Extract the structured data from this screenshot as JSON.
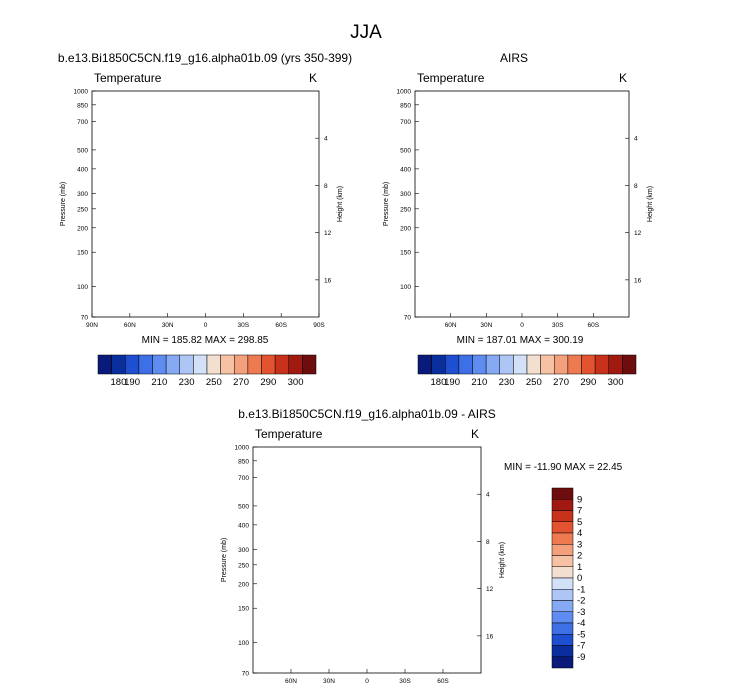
{
  "figure": {
    "title": "JJA"
  },
  "colors": {
    "temperature_levels": [
      "#0a1a7a",
      "#0b2e9e",
      "#1f4fd1",
      "#3d6fe6",
      "#5f8cf0",
      "#86a9f3",
      "#aec6f6",
      "#d2e1f8",
      "#f3dfd0",
      "#f7c2a4",
      "#f4a07c",
      "#ee7a52",
      "#e4532f",
      "#c8321a",
      "#a01a12",
      "#6e0d0d"
    ],
    "difference_levels": [
      "#0a1a7a",
      "#0b2e9e",
      "#1f4fd1",
      "#3d6fe6",
      "#5f8cf0",
      "#86a9f3",
      "#aec6f6",
      "#d2e1f8",
      "#f3dfd0",
      "#f7c2a4",
      "#f4a07c",
      "#ee7a52",
      "#e4532f",
      "#c8321a",
      "#a01a12",
      "#6e0d0d"
    ]
  },
  "chart_data": [
    {
      "type": "heatmap",
      "id": "model",
      "title": "b.e13.Bi1850C5CN.f19_g16.alpha01b.09 (yrs 350-399)",
      "variable": "Temperature",
      "units": "K",
      "stats": "MIN = 185.82  MAX = 298.85",
      "xlabel": "",
      "ylabel": "Pressure (mb)",
      "y2label": "Height (km)",
      "x_ticks": [
        "90N",
        "60N",
        "30N",
        "0",
        "30S",
        "60S",
        "90S"
      ],
      "x_tick_values": [
        90,
        60,
        30,
        0,
        -30,
        -60,
        -90
      ],
      "xlim": [
        90,
        -90
      ],
      "y_ticks": [
        "70",
        "100",
        "150",
        "200",
        "250",
        "300",
        "400",
        "500",
        "700",
        "850",
        "1000"
      ],
      "y_tick_values": [
        70,
        100,
        150,
        200,
        250,
        300,
        400,
        500,
        700,
        850,
        1000
      ],
      "ylim": [
        1000,
        70
      ],
      "y2_ticks": [
        "4",
        "8",
        "12",
        "16"
      ],
      "y2_tick_values": [
        4,
        8,
        12,
        16
      ],
      "data_range": [
        185.82,
        298.85
      ],
      "colorbar_levels": [
        180,
        190,
        200,
        210,
        220,
        230,
        240,
        250,
        260,
        270,
        280,
        290,
        300
      ],
      "colorbar_labels": [
        "180",
        "190",
        "210",
        "230",
        "250",
        "270",
        "290",
        "300"
      ],
      "colorbar_label_index": [
        1,
        2,
        4,
        6,
        8,
        10,
        12,
        13
      ]
    },
    {
      "type": "heatmap",
      "id": "obs",
      "title": "AIRS",
      "variable": "Temperature",
      "units": "K",
      "stats": "MIN = 187.01  MAX = 300.19",
      "xlabel": "",
      "ylabel": "Pressure (mb)",
      "y2label": "Height (km)",
      "x_ticks": [
        "60N",
        "30N",
        "0",
        "30S",
        "60S"
      ],
      "x_tick_values": [
        60,
        30,
        0,
        -30,
        -60
      ],
      "xlim": [
        90,
        -90
      ],
      "y_ticks": [
        "70",
        "100",
        "150",
        "200",
        "250",
        "300",
        "400",
        "500",
        "700",
        "850",
        "1000"
      ],
      "y_tick_values": [
        70,
        100,
        150,
        200,
        250,
        300,
        400,
        500,
        700,
        850,
        1000
      ],
      "ylim": [
        1000,
        70
      ],
      "y2_ticks": [
        "4",
        "8",
        "12",
        "16"
      ],
      "y2_tick_values": [
        4,
        8,
        12,
        16
      ],
      "data_range": [
        187.01,
        300.19
      ],
      "colorbar_levels": [
        180,
        190,
        200,
        210,
        220,
        230,
        240,
        250,
        260,
        270,
        280,
        290,
        300
      ],
      "colorbar_labels": [
        "180",
        "190",
        "210",
        "230",
        "250",
        "270",
        "290",
        "300"
      ],
      "colorbar_label_index": [
        1,
        2,
        4,
        6,
        8,
        10,
        12,
        13
      ]
    },
    {
      "type": "heatmap",
      "id": "diff",
      "title": "b.e13.Bi1850C5CN.f19_g16.alpha01b.09 - AIRS",
      "variable": "Temperature",
      "units": "K",
      "stats": "MIN = -11.90  MAX =  22.45",
      "xlabel": "",
      "ylabel": "Pressure (mb)",
      "y2label": "Height (km)",
      "x_ticks": [
        "60N",
        "30N",
        "0",
        "30S",
        "60S"
      ],
      "x_tick_values": [
        60,
        30,
        0,
        -30,
        -60
      ],
      "xlim": [
        90,
        -90
      ],
      "y_ticks": [
        "70",
        "100",
        "150",
        "200",
        "250",
        "300",
        "400",
        "500",
        "700",
        "850",
        "1000"
      ],
      "y_tick_values": [
        70,
        100,
        150,
        200,
        250,
        300,
        400,
        500,
        700,
        850,
        1000
      ],
      "ylim": [
        1000,
        70
      ],
      "y2_ticks": [
        "4",
        "8",
        "12",
        "16"
      ],
      "y2_tick_values": [
        4,
        8,
        12,
        16
      ],
      "data_range": [
        -11.9,
        22.45
      ],
      "colorbar_levels": [
        -9,
        -7,
        -5,
        -4,
        -3,
        -2,
        -1,
        0,
        1,
        2,
        3,
        4,
        5,
        7,
        9
      ],
      "colorbar_labels": [
        "9",
        "7",
        "5",
        "4",
        "3",
        "2",
        "1",
        "0",
        "-1",
        "-2",
        "-3",
        "-4",
        "-5",
        "-7",
        "-9"
      ]
    }
  ]
}
